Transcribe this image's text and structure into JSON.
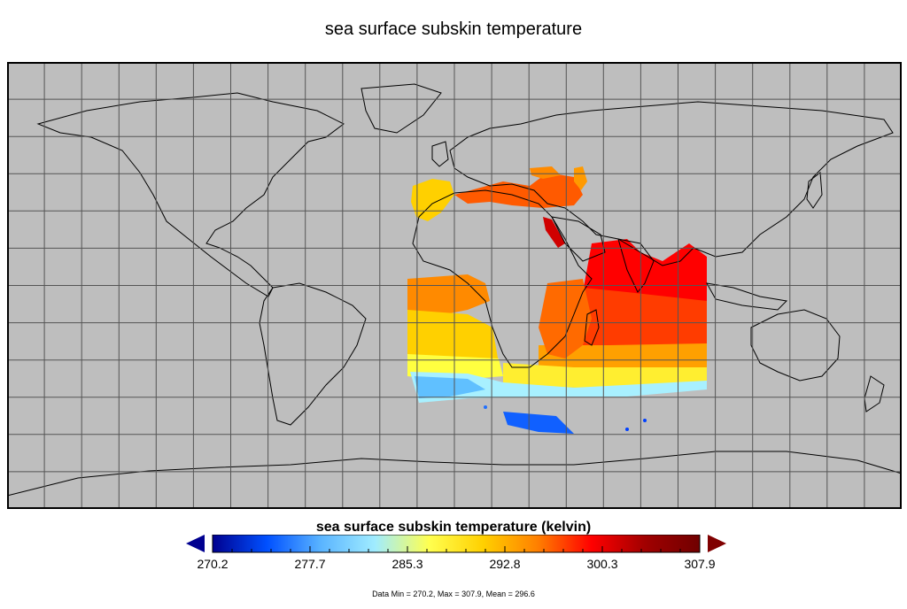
{
  "title": "sea surface subskin temperature",
  "colorbar": {
    "title": "sea surface subskin temperature (kelvin)",
    "ticks": [
      "270.2",
      "277.7",
      "285.3",
      "292.8",
      "300.3",
      "307.9"
    ],
    "colors": [
      "#00008f",
      "#0050ff",
      "#5ab4ff",
      "#a0ecff",
      "#ffff50",
      "#ffd000",
      "#ff8000",
      "#ff0000",
      "#a00000",
      "#700000"
    ],
    "under_color": "#000090",
    "over_color": "#800000"
  },
  "stats_text": "Data Min = 270.2, Max = 307.9, Mean = 296.6",
  "map": {
    "background": "#bebebe",
    "grid_color": "#555555",
    "projection": "equirectangular",
    "grid_spacing_deg": 15
  }
}
